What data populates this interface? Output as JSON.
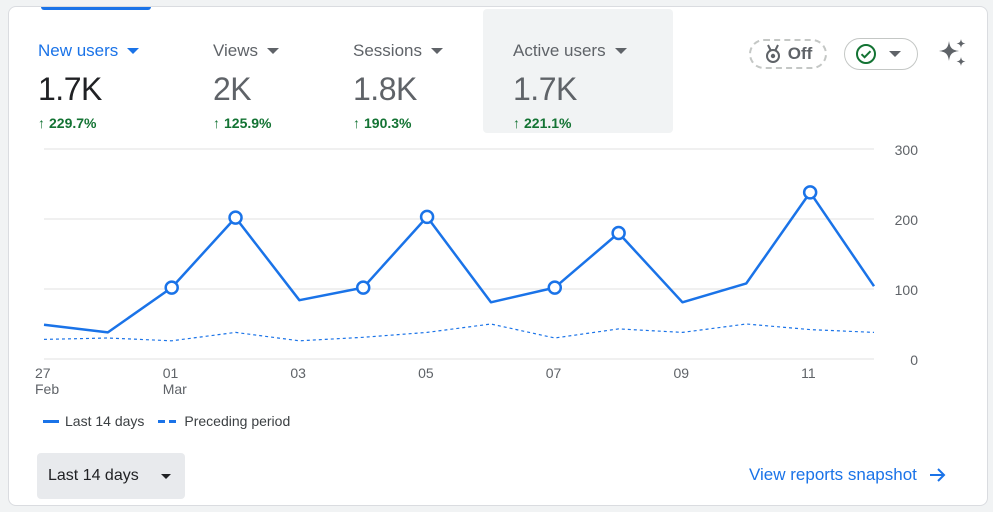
{
  "metrics": [
    {
      "label": "New users",
      "value": "1.7K",
      "change": "229.7%",
      "selected": true
    },
    {
      "label": "Views",
      "value": "2K",
      "change": "125.9%",
      "selected": false
    },
    {
      "label": "Sessions",
      "value": "1.8K",
      "change": "190.3%",
      "selected": false
    },
    {
      "label": "Active users",
      "value": "1.7K",
      "change": "221.1%",
      "selected": false
    }
  ],
  "toolbar": {
    "off_label": "Off"
  },
  "colors": {
    "primary": "#1a73e8",
    "positive": "#137333",
    "grid": "#e0e0e0"
  },
  "chart_data": {
    "type": "line",
    "x": [
      "27 Feb",
      "28 Feb",
      "01 Mar",
      "02 Mar",
      "03 Mar",
      "04 Mar",
      "05 Mar",
      "06 Mar",
      "07 Mar",
      "08 Mar",
      "09 Mar",
      "10 Mar",
      "11 Mar",
      "12 Mar"
    ],
    "tick_labels": [
      {
        "index": 0,
        "line1": "27",
        "line2": "Feb"
      },
      {
        "index": 2,
        "line1": "01",
        "line2": "Mar"
      },
      {
        "index": 4,
        "line1": "03",
        "line2": ""
      },
      {
        "index": 6,
        "line1": "05",
        "line2": ""
      },
      {
        "index": 8,
        "line1": "07",
        "line2": ""
      },
      {
        "index": 10,
        "line1": "09",
        "line2": ""
      },
      {
        "index": 12,
        "line1": "11",
        "line2": ""
      }
    ],
    "series": [
      {
        "name": "Last 14 days",
        "style": "solid",
        "values": [
          49,
          38,
          102,
          202,
          84,
          102,
          203,
          81,
          102,
          180,
          81,
          108,
          238,
          104
        ],
        "markers": [
          2,
          3,
          5,
          6,
          8,
          9,
          12
        ]
      },
      {
        "name": "Preceding period",
        "style": "dashed",
        "values": [
          28,
          30,
          26,
          38,
          26,
          31,
          38,
          50,
          30,
          43,
          38,
          50,
          42,
          38
        ]
      }
    ],
    "ylim": [
      0,
      300
    ],
    "yticks": [
      "300",
      "200",
      "100",
      "0"
    ],
    "grid": true
  },
  "legend": {
    "current_label": "Last 14 days",
    "previous_label": "Preceding period"
  },
  "footer": {
    "range_label": "Last 14 days",
    "snapshot_label": "View reports snapshot"
  }
}
